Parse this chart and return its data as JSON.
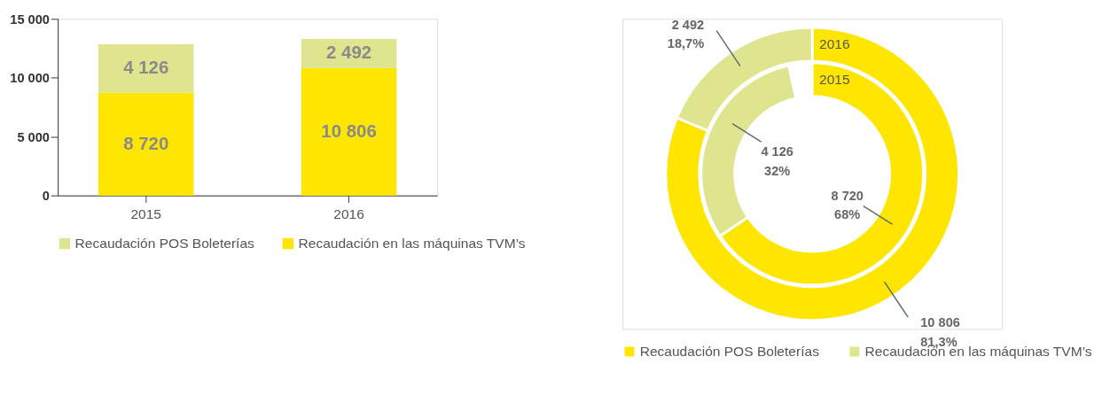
{
  "chart_data": [
    {
      "type": "bar",
      "stacked": true,
      "categories": [
        "2015",
        "2016"
      ],
      "series": [
        {
          "name": "Recaudación en las máquinas TVM’s",
          "color": "#ffe600",
          "values": [
            8720,
            10806
          ],
          "value_labels": [
            "8 720",
            "10 806"
          ]
        },
        {
          "name": "Recaudación POS Boleterías",
          "color": "#dfe58e",
          "values": [
            4126,
            2492
          ],
          "value_labels": [
            "4 126",
            "2 492"
          ]
        }
      ],
      "ylim": [
        0,
        15000
      ],
      "yticks": [
        {
          "value": 0,
          "label": "0"
        },
        {
          "value": 5000,
          "label": "5 000"
        },
        {
          "value": 10000,
          "label": "10 000"
        },
        {
          "value": 15000,
          "label": "15 000"
        }
      ],
      "grid": false,
      "legend": "bottom"
    },
    {
      "type": "donut",
      "categories": [
        "Recaudación POS Boleterías",
        "Recaudación en las máquinas TVM’s"
      ],
      "colors": [
        "#ffe600",
        "#dfe58e"
      ],
      "series": [
        {
          "name": "2016",
          "values": [
            10806,
            2492
          ],
          "value_labels": [
            "10 806\n81,3%",
            "2 492\n18,7%"
          ]
        },
        {
          "name": "2015",
          "values": [
            8720,
            4126
          ],
          "value_labels": [
            "8 720\n68%",
            "4 126\n32%"
          ]
        }
      ],
      "legend": "bottom"
    }
  ]
}
